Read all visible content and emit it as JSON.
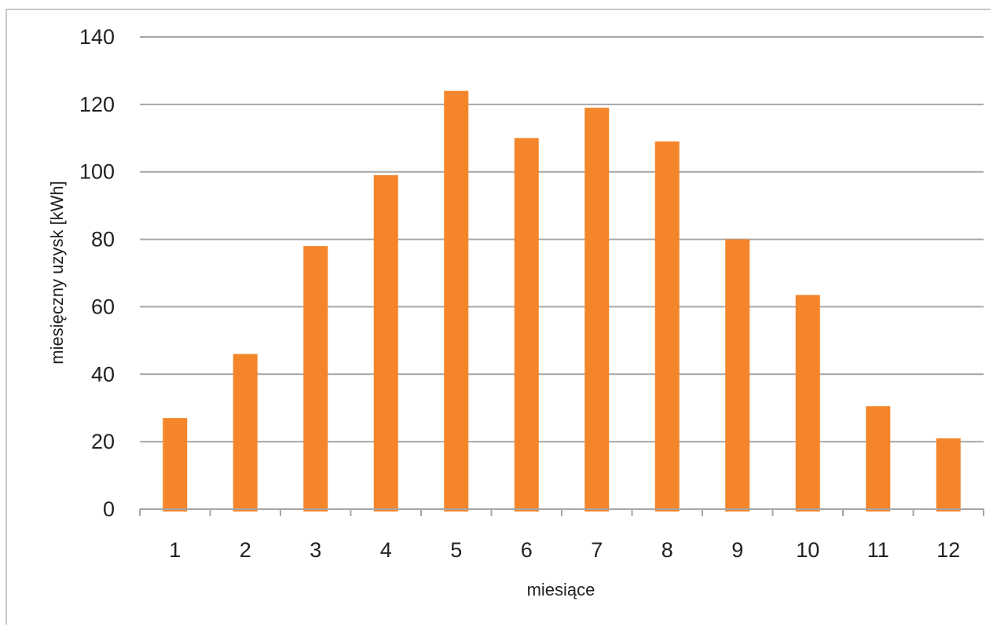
{
  "chart_data": {
    "type": "bar",
    "categories": [
      "1",
      "2",
      "3",
      "4",
      "5",
      "6",
      "7",
      "8",
      "9",
      "10",
      "11",
      "12"
    ],
    "values": [
      27,
      46,
      78,
      99,
      124,
      110,
      119,
      109,
      80,
      63.5,
      30.5,
      21
    ],
    "title": "",
    "xlabel": "miesiące",
    "ylabel": "miesięczny uzysk [kWh]",
    "ylim": [
      0,
      140
    ],
    "yticks": [
      0,
      20,
      40,
      60,
      80,
      100,
      120,
      140
    ],
    "grid": true,
    "legend": "none",
    "bar_color": "#f5852a",
    "grid_color": "#a6a6a6"
  }
}
